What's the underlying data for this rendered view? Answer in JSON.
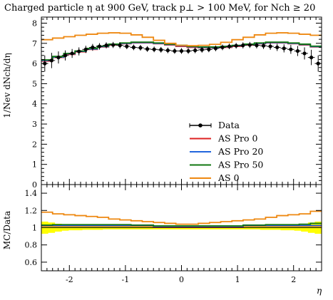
{
  "chart_data": {
    "type": "line",
    "title": "Charged particle η at 900 GeV, track p⊥ > 100 MeV, for Nch ≥ 20",
    "xlabel": "η",
    "xlim": [
      -2.5,
      2.5
    ],
    "main": {
      "ylabel": "1/Nev dNch/dη",
      "ylim": [
        0,
        8.3
      ],
      "yticks": [
        "0",
        "1",
        "2",
        "3",
        "4",
        "5",
        "6",
        "7",
        "8"
      ],
      "legend_position": "lower-right"
    },
    "ratio": {
      "ylabel": "MC/Data",
      "ylim": [
        0.5,
        1.5
      ],
      "yticks": [
        "0.6",
        "0.8",
        "1",
        "1.2",
        "1.4"
      ],
      "band_color": "#ffff00",
      "band_halfwidth": [
        0.07,
        0.06,
        0.045,
        0.035,
        0.03,
        0.03,
        0.025,
        0.025,
        0.025,
        0.02,
        0.02,
        0.02,
        0.02,
        0.02,
        0.02,
        0.02,
        0.02,
        0.02,
        0.02,
        0.02,
        0.02,
        0.02,
        0.02,
        0.02,
        0.02,
        0.02,
        0.02,
        0.02,
        0.02,
        0.02,
        0.02,
        0.02,
        0.025,
        0.025,
        0.025,
        0.03,
        0.03,
        0.035,
        0.045,
        0.06,
        0.07
      ]
    },
    "xticks": [
      "-2",
      "-1",
      "0",
      "1",
      "2"
    ],
    "bin_edges": [
      -2.5,
      2.5
    ],
    "nbins": 25,
    "series": [
      {
        "name": "Data",
        "kind": "points",
        "color": "#000000",
        "values": [
          6.0,
          6.15,
          6.3,
          6.4,
          6.5,
          6.6,
          6.7,
          6.8,
          6.85,
          6.9,
          6.92,
          6.9,
          6.85,
          6.8,
          6.78,
          6.72,
          6.7,
          6.68,
          6.65,
          6.62,
          6.62,
          6.62,
          6.65,
          6.68,
          6.7,
          6.75,
          6.8,
          6.85,
          6.88,
          6.9,
          6.92,
          6.9,
          6.88,
          6.85,
          6.8,
          6.75,
          6.7,
          6.62,
          6.5,
          6.3,
          6.0
        ],
        "errors": [
          0.4,
          0.38,
          0.3,
          0.25,
          0.22,
          0.2,
          0.18,
          0.17,
          0.16,
          0.15,
          0.15,
          0.15,
          0.14,
          0.14,
          0.14,
          0.14,
          0.14,
          0.14,
          0.14,
          0.14,
          0.14,
          0.14,
          0.14,
          0.14,
          0.14,
          0.14,
          0.14,
          0.14,
          0.14,
          0.15,
          0.15,
          0.15,
          0.16,
          0.17,
          0.18,
          0.2,
          0.22,
          0.25,
          0.3,
          0.38,
          0.4
        ]
      },
      {
        "name": "AS Pro 0",
        "kind": "hist",
        "color": "#dd2222",
        "values": [
          6.12,
          6.3,
          6.45,
          6.58,
          6.7,
          6.82,
          6.92,
          6.98,
          7.02,
          7.02,
          6.98,
          6.92,
          6.85,
          6.8,
          6.78,
          6.78,
          6.8,
          6.85,
          6.92,
          6.98,
          7.02,
          7.02,
          6.98,
          6.92,
          6.82
        ]
      },
      {
        "name": "AS Pro 20",
        "kind": "hist",
        "color": "#2266dd",
        "values": [
          6.15,
          6.32,
          6.48,
          6.6,
          6.72,
          6.84,
          6.94,
          7.0,
          7.04,
          7.04,
          7.0,
          6.94,
          6.88,
          6.83,
          6.8,
          6.8,
          6.83,
          6.88,
          6.94,
          7.0,
          7.04,
          7.04,
          7.0,
          6.94,
          6.84
        ]
      },
      {
        "name": "AS Pro 50",
        "kind": "hist",
        "color": "#117711",
        "values": [
          6.18,
          6.35,
          6.5,
          6.62,
          6.75,
          6.86,
          6.96,
          7.02,
          7.06,
          7.06,
          7.02,
          6.96,
          6.9,
          6.85,
          6.82,
          6.82,
          6.85,
          6.9,
          6.96,
          7.02,
          7.06,
          7.06,
          7.02,
          6.96,
          6.86
        ]
      },
      {
        "name": "AS 0",
        "kind": "hist",
        "color": "#ee8811",
        "values": [
          7.18,
          7.26,
          7.33,
          7.4,
          7.45,
          7.5,
          7.52,
          7.5,
          7.42,
          7.3,
          7.15,
          7.0,
          6.9,
          6.88,
          6.9,
          6.95,
          7.05,
          7.18,
          7.3,
          7.42,
          7.5,
          7.52,
          7.5,
          7.45,
          7.4
        ]
      }
    ],
    "ratios": [
      {
        "name": "AS Pro 0",
        "values": [
          1.02,
          1.02,
          1.02,
          1.02,
          1.02,
          1.02,
          1.02,
          1.02,
          1.02,
          1.02,
          1.01,
          1.01,
          1.01,
          1.01,
          1.01,
          1.01,
          1.01,
          1.01,
          1.02,
          1.02,
          1.02,
          1.02,
          1.02,
          1.02,
          1.02
        ]
      },
      {
        "name": "AS Pro 20",
        "values": [
          1.025,
          1.025,
          1.025,
          1.025,
          1.025,
          1.025,
          1.025,
          1.025,
          1.025,
          1.025,
          1.015,
          1.015,
          1.015,
          1.015,
          1.015,
          1.015,
          1.015,
          1.015,
          1.025,
          1.025,
          1.025,
          1.025,
          1.025,
          1.025,
          1.025
        ]
      },
      {
        "name": "AS Pro 50",
        "values": [
          1.03,
          1.035,
          1.035,
          1.035,
          1.035,
          1.035,
          1.035,
          1.035,
          1.03,
          1.03,
          1.02,
          1.02,
          1.02,
          1.02,
          1.02,
          1.02,
          1.02,
          1.02,
          1.03,
          1.03,
          1.035,
          1.035,
          1.035,
          1.04,
          1.05
        ]
      },
      {
        "name": "AS 0",
        "values": [
          1.18,
          1.16,
          1.15,
          1.14,
          1.13,
          1.12,
          1.1,
          1.09,
          1.08,
          1.07,
          1.06,
          1.05,
          1.04,
          1.04,
          1.05,
          1.06,
          1.07,
          1.08,
          1.09,
          1.1,
          1.12,
          1.14,
          1.15,
          1.16,
          1.19
        ]
      }
    ]
  }
}
